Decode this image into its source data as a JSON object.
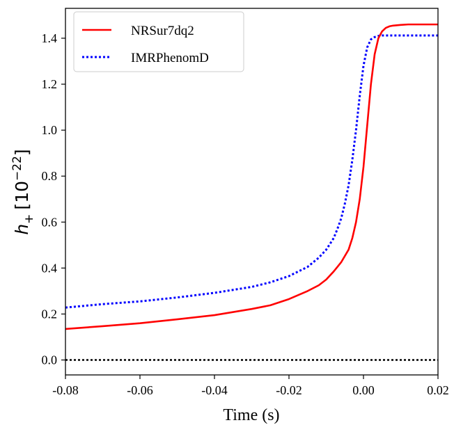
{
  "chart_data": {
    "type": "line",
    "xlabel": "Time (s)",
    "ylabel_parts": {
      "symbol": "h",
      "subscript": "+",
      "unit_open": "[10",
      "unit_sup": "−22",
      "unit_close": "]"
    },
    "xlim": [
      -0.08,
      0.02
    ],
    "ylim": [
      -0.065,
      1.53
    ],
    "x_ticks": [
      -0.08,
      -0.06,
      -0.04,
      -0.02,
      0.0,
      0.02
    ],
    "x_tick_labels": [
      "-0.08",
      "-0.06",
      "-0.04",
      "-0.02",
      "0.00",
      "0.02"
    ],
    "y_ticks": [
      0.0,
      0.2,
      0.4,
      0.6,
      0.8,
      1.0,
      1.2,
      1.4
    ],
    "y_tick_labels": [
      "0.0",
      "0.2",
      "0.4",
      "0.6",
      "0.8",
      "1.0",
      "1.2",
      "1.4"
    ],
    "grid": false,
    "legend_position": "top-left",
    "zero_line": {
      "y": 0.0,
      "color": "#000000",
      "style": "dotted"
    },
    "series": [
      {
        "name": "NRSur7dq2",
        "color": "#ff0000",
        "style": "solid",
        "x": [
          -0.08,
          -0.07,
          -0.06,
          -0.05,
          -0.04,
          -0.03,
          -0.025,
          -0.02,
          -0.015,
          -0.012,
          -0.01,
          -0.008,
          -0.006,
          -0.004,
          -0.003,
          -0.002,
          -0.001,
          0.0,
          0.001,
          0.002,
          0.003,
          0.004,
          0.005,
          0.006,
          0.007,
          0.008,
          0.01,
          0.012,
          0.015,
          0.02
        ],
        "y": [
          0.135,
          0.147,
          0.16,
          0.177,
          0.195,
          0.222,
          0.238,
          0.265,
          0.3,
          0.325,
          0.35,
          0.385,
          0.425,
          0.48,
          0.53,
          0.6,
          0.7,
          0.84,
          1.02,
          1.2,
          1.33,
          1.4,
          1.43,
          1.445,
          1.452,
          1.455,
          1.458,
          1.46,
          1.46,
          1.46
        ]
      },
      {
        "name": "IMRPhenomD",
        "color": "#0000ff",
        "style": "dotted",
        "x": [
          -0.08,
          -0.07,
          -0.06,
          -0.05,
          -0.04,
          -0.03,
          -0.025,
          -0.02,
          -0.015,
          -0.012,
          -0.01,
          -0.008,
          -0.007,
          -0.006,
          -0.005,
          -0.004,
          -0.003,
          -0.002,
          -0.001,
          0.0,
          0.001,
          0.002,
          0.003,
          0.004,
          0.005,
          0.006,
          0.008,
          0.01,
          0.015,
          0.02
        ],
        "y": [
          0.228,
          0.243,
          0.255,
          0.272,
          0.292,
          0.318,
          0.338,
          0.365,
          0.405,
          0.445,
          0.48,
          0.53,
          0.57,
          0.615,
          0.68,
          0.76,
          0.87,
          1.0,
          1.15,
          1.28,
          1.36,
          1.395,
          1.405,
          1.41,
          1.412,
          1.412,
          1.412,
          1.412,
          1.412,
          1.412
        ]
      }
    ]
  }
}
